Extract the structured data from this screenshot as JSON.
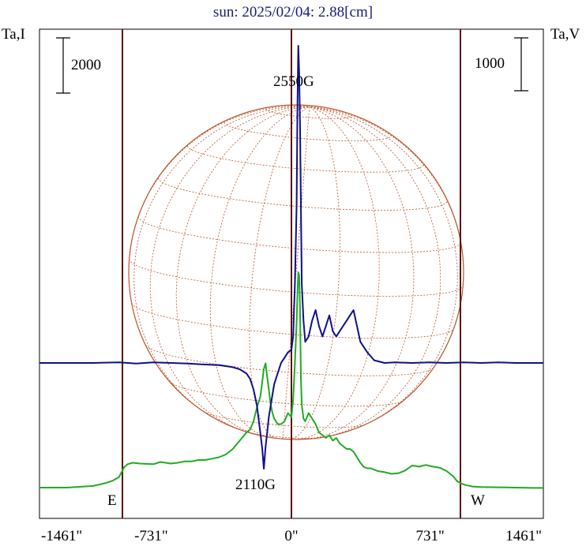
{
  "chart_data": {
    "type": "line",
    "title": "sun: 2025/02/04: 2.88[cm]",
    "left_axis_label": "Ta,I",
    "right_axis_label": "Ta,V",
    "left_scale_bar": "2000",
    "right_scale_bar": "1000",
    "x_tick_labels": [
      "-1461\"",
      "-731\"",
      "0\"",
      "731\"",
      "1461\""
    ],
    "x_ticks": [
      -1461,
      -731,
      0,
      731,
      1461
    ],
    "xlim": [
      -1461,
      1461
    ],
    "limb_markers": [
      -980,
      0,
      980
    ],
    "left_marker_label": "E",
    "right_marker_label": "W",
    "annotations": [
      {
        "text": "2550G",
        "x": 40
      },
      {
        "text": "2110G",
        "x": -40
      }
    ],
    "grid": false,
    "colors": {
      "series_I": "#22aa22",
      "series_V": "#10108a",
      "disk": "#b8552a",
      "markers": "#5a1414",
      "title": "#1a1a7a"
    },
    "series": [
      {
        "name": "Ta,I",
        "axis": "left",
        "x": [
          -1461,
          -1300,
          -1150,
          -1080,
          -1040,
          -1000,
          -985,
          -970,
          -950,
          -920,
          -880,
          -840,
          -800,
          -760,
          -700,
          -660,
          -620,
          -580,
          -540,
          -500,
          -460,
          -420,
          -380,
          -340,
          -300,
          -260,
          -240,
          -220,
          -200,
          -180,
          -170,
          -160,
          -150,
          -140,
          -130,
          -120,
          -110,
          -100,
          -80,
          -60,
          -40,
          -20,
          0,
          10,
          20,
          30,
          35,
          40,
          45,
          50,
          55,
          60,
          70,
          80,
          100,
          120,
          140,
          160,
          180,
          200,
          220,
          240,
          260,
          280,
          300,
          320,
          340,
          360,
          380,
          400,
          420,
          440,
          460,
          480,
          500,
          540,
          580,
          620,
          660,
          700,
          740,
          780,
          820,
          860,
          900,
          940,
          960,
          980,
          1000,
          1020,
          1050,
          1100,
          1200,
          1300,
          1400,
          1461
        ],
        "y": [
          0,
          0,
          60,
          160,
          240,
          380,
          560,
          740,
          850,
          900,
          870,
          860,
          850,
          930,
          870,
          900,
          950,
          950,
          1000,
          1000,
          1050,
          1100,
          1200,
          1400,
          1700,
          2000,
          2100,
          2400,
          2900,
          3300,
          3800,
          4300,
          4500,
          4000,
          3500,
          3000,
          2700,
          2500,
          2300,
          2300,
          2400,
          2700,
          2550,
          3200,
          4500,
          6000,
          7000,
          7800,
          7700,
          6500,
          4000,
          3000,
          2500,
          2400,
          2700,
          2500,
          2300,
          2000,
          1900,
          1800,
          1900,
          1700,
          1800,
          1600,
          1500,
          1400,
          1400,
          1300,
          1100,
          900,
          750,
          700,
          700,
          650,
          600,
          560,
          500,
          520,
          620,
          800,
          760,
          820,
          760,
          720,
          600,
          400,
          240,
          160,
          110,
          80,
          40,
          20,
          10,
          0,
          -10,
          -10
        ]
      },
      {
        "name": "Ta,V",
        "axis": "right",
        "x": [
          -1461,
          -1300,
          -1150,
          -1000,
          -900,
          -800,
          -700,
          -600,
          -500,
          -420,
          -380,
          -340,
          -300,
          -260,
          -240,
          -220,
          -200,
          -185,
          -170,
          -160,
          -150,
          -140,
          -130,
          -120,
          -100,
          -80,
          -60,
          -40,
          -20,
          0,
          10,
          20,
          30,
          35,
          40,
          45,
          50,
          55,
          60,
          70,
          80,
          100,
          120,
          140,
          160,
          180,
          200,
          220,
          240,
          260,
          280,
          300,
          320,
          340,
          360,
          380,
          400,
          440,
          480,
          540,
          600,
          700,
          800,
          900,
          1000,
          1100,
          1200,
          1300,
          1461
        ],
        "y": [
          0,
          0,
          0,
          10,
          -10,
          10,
          0,
          -10,
          -30,
          -40,
          -60,
          -80,
          -120,
          -200,
          -300,
          -500,
          -800,
          -1200,
          -1600,
          -2000,
          -1600,
          -1300,
          -1000,
          -800,
          -400,
          -200,
          0,
          100,
          200,
          250,
          500,
          1500,
          3000,
          4800,
          6000,
          5500,
          4500,
          3000,
          1500,
          800,
          400,
          500,
          800,
          1000,
          700,
          500,
          700,
          900,
          600,
          500,
          600,
          700,
          800,
          900,
          1000,
          700,
          400,
          200,
          50,
          0,
          10,
          0,
          10,
          0,
          10,
          0,
          10,
          0,
          0
        ]
      }
    ]
  }
}
